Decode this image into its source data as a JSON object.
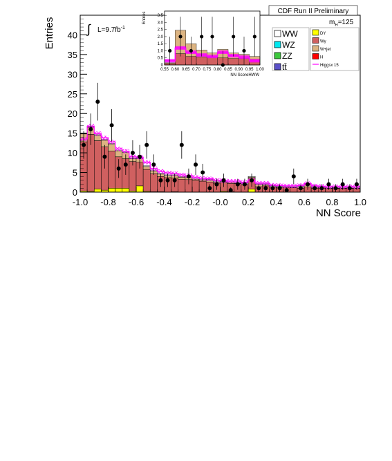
{
  "chart_data": {
    "type": "bar",
    "stacked": true,
    "title": "CDF Run II Preliminary",
    "xlabel": "NN Score",
    "ylabel": "Entries",
    "lumi_label": "L=9.7fb",
    "lumi_sup": "-1",
    "integral_symbol": "∫",
    "mass_label_main": "m",
    "mass_label_sub": "H",
    "mass_label_value": "=125",
    "xlim": [
      -1.0,
      1.0
    ],
    "ylim": [
      0,
      45
    ],
    "xticks": [
      "-1.0",
      "-0.8",
      "-0.6",
      "-0.4",
      "-0.2",
      "-0.0",
      "0.2",
      "0.4",
      "0.6",
      "0.8",
      "1.0"
    ],
    "xtick_values": [
      -1.0,
      -0.8,
      -0.6,
      -0.4,
      -0.2,
      0.0,
      0.2,
      0.4,
      0.6,
      0.8,
      1.0
    ],
    "yticks": [
      "0",
      "5",
      "10",
      "15",
      "20",
      "25",
      "30",
      "35",
      "40"
    ],
    "ytick_values": [
      0,
      5,
      10,
      15,
      20,
      25,
      30,
      35,
      40
    ],
    "colors": {
      "WW": "#ffffff",
      "WZ": "#00e8f0",
      "ZZ": "#3cc83c",
      "ttbar": "#5a50c8",
      "DY": "#ffff00",
      "Wgamma": "#d06060",
      "Wjet": "#dcb482",
      "H": "#ff0000",
      "higgs_line": "#ff00ff",
      "signal_band": "#ff00ff",
      "data": "#000000"
    },
    "legend_left": [
      {
        "label": "WW",
        "color_key": "WW"
      },
      {
        "label": "WZ",
        "color_key": "WZ"
      },
      {
        "label": "ZZ",
        "color_key": "ZZ"
      },
      {
        "label": "tt̄",
        "color_key": "ttbar"
      }
    ],
    "legend_right": [
      {
        "label": "DY",
        "color_key": "DY"
      },
      {
        "label": "Wγ",
        "color_key": "Wgamma"
      },
      {
        "label": "W+jet",
        "color_key": "Wjet"
      },
      {
        "label": "H",
        "color_key": "H"
      },
      {
        "label": "Higgsx 15",
        "color_key": "higgs_line",
        "line": true
      }
    ],
    "bin_width": 0.05,
    "bins_start": [
      -1.0,
      -0.95,
      -0.9,
      -0.85,
      -0.8,
      -0.75,
      -0.7,
      -0.65,
      -0.6,
      -0.55,
      -0.5,
      -0.45,
      -0.4,
      -0.35,
      -0.3,
      -0.25,
      -0.2,
      -0.15,
      -0.1,
      -0.05,
      0.0,
      0.05,
      0.1,
      0.15,
      0.2,
      0.25,
      0.3,
      0.35,
      0.4,
      0.45,
      0.5,
      0.55,
      0.6,
      0.65,
      0.7,
      0.75,
      0.8,
      0.85,
      0.9,
      0.95
    ],
    "series": [
      {
        "name": "DY",
        "color_key": "DY",
        "values": [
          0.3,
          0.2,
          0.8,
          0.5,
          1.0,
          1.0,
          1.0,
          0.3,
          1.6,
          0.2,
          0.1,
          0.1,
          0,
          0.1,
          0,
          0,
          0,
          0,
          0,
          0,
          0.2,
          0.1,
          0,
          0,
          0.8,
          0,
          0,
          0,
          0,
          0,
          0,
          0,
          0,
          0,
          0,
          0,
          0,
          0,
          0,
          0
        ]
      },
      {
        "name": "Wγ",
        "color_key": "Wgamma",
        "values": [
          12.5,
          14.5,
          12.3,
          11.0,
          9.4,
          8.0,
          7.5,
          7.5,
          6.0,
          5.6,
          4.6,
          3.9,
          3.7,
          3.5,
          3.3,
          3.2,
          3.0,
          2.8,
          2.6,
          2.3,
          2.2,
          2.1,
          2.2,
          1.8,
          2.6,
          1.4,
          1.6,
          1.3,
          1.2,
          1.2,
          1.1,
          1.0,
          1.3,
          1.0,
          1.0,
          0.9,
          0.9,
          0.9,
          0.9,
          0.9
        ]
      },
      {
        "name": "W+jet",
        "color_key": "Wjet",
        "values": [
          2.0,
          1.8,
          1.3,
          1.7,
          1.8,
          1.5,
          1.6,
          0.7,
          0.9,
          0.7,
          0.7,
          0.6,
          0.5,
          0.6,
          0.5,
          0.5,
          0.3,
          0.3,
          0.4,
          0.3,
          0.3,
          0.4,
          0.1,
          0.3,
          0.4,
          0.5,
          0.3,
          0.1,
          0.1,
          0.1,
          0.1,
          0.3,
          0.6,
          0.2,
          0.1,
          0.1,
          0.1,
          0.1,
          0.1,
          0.1
        ]
      },
      {
        "name": "WW",
        "color_key": "WW",
        "values": [
          0.1,
          0.1,
          0.2,
          0.2,
          0.2,
          0.2,
          0.2,
          0.2,
          0.2,
          0.2,
          0.2,
          0.2,
          0.2,
          0.2,
          0.2,
          0.2,
          0.2,
          0.2,
          0.2,
          0.2,
          0.2,
          0.2,
          0.2,
          0.2,
          0.2,
          0.2,
          0.2,
          0.2,
          0.2,
          0.2,
          0.2,
          0.2,
          0.2,
          0.2,
          0.2,
          0.2,
          0.2,
          0.2,
          0.2,
          0.2
        ]
      }
    ],
    "higgs_x15": [
      13.5,
      16.8,
      14.9,
      13.8,
      12.8,
      11.0,
      10.4,
      9.0,
      8.9,
      7.6,
      6.0,
      5.3,
      4.9,
      4.7,
      4.4,
      4.2,
      3.8,
      3.5,
      3.4,
      3.0,
      2.9,
      2.8,
      2.8,
      2.5,
      3.0,
      2.3,
      2.3,
      1.8,
      1.7,
      1.6,
      1.6,
      1.7,
      2.2,
      1.6,
      1.5,
      1.4,
      1.4,
      1.4,
      1.4,
      1.4
    ],
    "data_points": [
      {
        "x": -0.975,
        "y": 12,
        "err": 3.5
      },
      {
        "x": -0.925,
        "y": 16,
        "err": 4.0
      },
      {
        "x": -0.875,
        "y": 23,
        "err": 4.8
      },
      {
        "x": -0.825,
        "y": 9,
        "err": 3.0
      },
      {
        "x": -0.775,
        "y": 17,
        "err": 4.1
      },
      {
        "x": -0.725,
        "y": 6,
        "err": 2.4
      },
      {
        "x": -0.675,
        "y": 7,
        "err": 2.6
      },
      {
        "x": -0.625,
        "y": 10,
        "err": 3.2
      },
      {
        "x": -0.575,
        "y": 9,
        "err": 3.0
      },
      {
        "x": -0.525,
        "y": 12,
        "err": 3.5
      },
      {
        "x": -0.475,
        "y": 7,
        "err": 2.6
      },
      {
        "x": -0.425,
        "y": 3,
        "err": 1.7
      },
      {
        "x": -0.375,
        "y": 3,
        "err": 1.7
      },
      {
        "x": -0.325,
        "y": 3,
        "err": 1.7
      },
      {
        "x": -0.275,
        "y": 12,
        "err": 3.5
      },
      {
        "x": -0.225,
        "y": 4,
        "err": 2.0
      },
      {
        "x": -0.175,
        "y": 7,
        "err": 2.6
      },
      {
        "x": -0.125,
        "y": 5,
        "err": 2.2
      },
      {
        "x": -0.075,
        "y": 1,
        "err": 1.0
      },
      {
        "x": -0.025,
        "y": 2,
        "err": 1.4
      },
      {
        "x": 0.025,
        "y": 3,
        "err": 1.7
      },
      {
        "x": 0.075,
        "y": 0.5,
        "err": 0.7
      },
      {
        "x": 0.125,
        "y": 2,
        "err": 1.4
      },
      {
        "x": 0.175,
        "y": 2,
        "err": 1.4
      },
      {
        "x": 0.225,
        "y": 3,
        "err": 1.7
      },
      {
        "x": 0.275,
        "y": 1,
        "err": 1.0
      },
      {
        "x": 0.325,
        "y": 1,
        "err": 1.0
      },
      {
        "x": 0.375,
        "y": 1,
        "err": 1.0
      },
      {
        "x": 0.425,
        "y": 1,
        "err": 1.0
      },
      {
        "x": 0.475,
        "y": 0.5,
        "err": 0.7
      },
      {
        "x": 0.525,
        "y": 4,
        "err": 2.0
      },
      {
        "x": 0.575,
        "y": 1,
        "err": 1.0
      },
      {
        "x": 0.625,
        "y": 2,
        "err": 1.4
      },
      {
        "x": 0.675,
        "y": 1,
        "err": 1.0
      },
      {
        "x": 0.725,
        "y": 1,
        "err": 1.0
      },
      {
        "x": 0.775,
        "y": 2,
        "err": 1.4
      },
      {
        "x": 0.825,
        "y": 1,
        "err": 1.0
      },
      {
        "x": 0.875,
        "y": 2,
        "err": 1.4
      },
      {
        "x": 0.925,
        "y": 1,
        "err": 1.0
      },
      {
        "x": 0.975,
        "y": 2,
        "err": 1.4
      }
    ],
    "inset": {
      "xlabel": "NN ScoreHWW",
      "ylabel": "Entries",
      "xlim": [
        0.55,
        1.0
      ],
      "ylim": [
        0,
        3.8
      ],
      "xticks": [
        "0.55",
        "0.60",
        "0.65",
        "0.70",
        "0.75",
        "0.80",
        "0.85",
        "0.90",
        "0.95",
        "1.00"
      ],
      "xtick_values": [
        0.55,
        0.6,
        0.65,
        0.7,
        0.75,
        0.8,
        0.85,
        0.9,
        0.95,
        1.0
      ],
      "yticks": [
        "0",
        "0.5",
        "1.0",
        "1.5",
        "2.0",
        "2.5",
        "3.0",
        "3.5"
      ],
      "ytick_values": [
        0,
        0.5,
        1.0,
        1.5,
        2.0,
        2.5,
        3.0,
        3.5
      ],
      "bins_start": [
        0.55,
        0.6,
        0.65,
        0.7,
        0.75,
        0.8,
        0.85,
        0.9,
        0.95
      ],
      "bin_width": 0.05,
      "series": [
        {
          "name": "Wγ",
          "color_key": "Wgamma",
          "values": [
            0.1,
            0.8,
            0.6,
            0.55,
            0.5,
            0.5,
            0.45,
            0.45,
            0.4
          ]
        },
        {
          "name": "W+jet",
          "color_key": "Wjet",
          "values": [
            0.05,
            1.65,
            0.9,
            0.5,
            0.35,
            0.6,
            0.4,
            0.3,
            0.2
          ]
        }
      ],
      "higgs_x15": [
        0.3,
        1.2,
        0.9,
        0.7,
        0.6,
        0.9,
        0.65,
        0.55,
        0.3
      ],
      "data_points": [
        {
          "x": 0.575,
          "y": 1.0,
          "err": 1.0
        },
        {
          "x": 0.625,
          "y": 2.0,
          "err": 1.4
        },
        {
          "x": 0.675,
          "y": 1.0,
          "err": 1.0
        },
        {
          "x": 0.725,
          "y": 2.0,
          "err": 1.4
        },
        {
          "x": 0.775,
          "y": 2.0,
          "err": 1.4
        },
        {
          "x": 0.825,
          "y": 0.0,
          "err": 1.0
        },
        {
          "x": 0.875,
          "y": 2.0,
          "err": 1.4
        },
        {
          "x": 0.925,
          "y": 1.0,
          "err": 1.0
        },
        {
          "x": 0.975,
          "y": 2.0,
          "err": 1.4
        }
      ]
    }
  }
}
